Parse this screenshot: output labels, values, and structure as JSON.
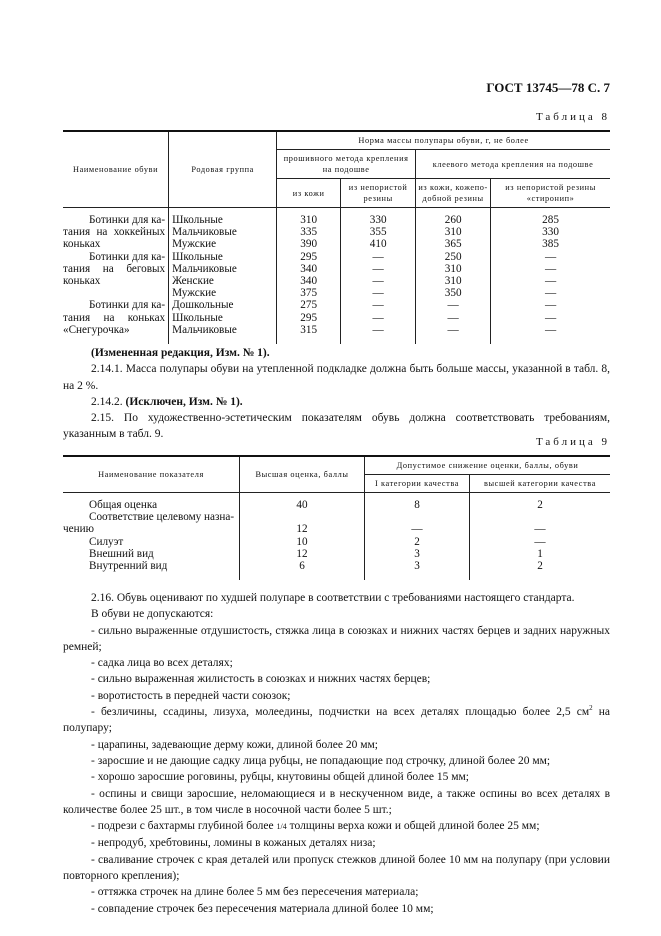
{
  "header": {
    "doc_ref": "ГОСТ 13745—78 С. 7"
  },
  "table8": {
    "caption": "Таблица 8",
    "headers": {
      "name": "Наименование обуви",
      "group": "Родовая группа",
      "norm": "Норма массы полупары обуви, г, не более",
      "sewn": "прошивного метода крепления на подошве",
      "glued": "клеевого метода крепления на подошве",
      "sewn_leather": "из кожи",
      "sewn_rubber": "из непористой резины",
      "glued_leather": "из кожи, кожепо-добной резины",
      "glued_stiron": "из непористой резины «стиронип»"
    },
    "rows": [
      {
        "name": "Ботинки для ка-",
        "group": "Школьные",
        "c1": "310",
        "c2": "330",
        "c3": "260",
        "c4": "285"
      },
      {
        "name": "тания на хоккейных",
        "group": "Мальчиковые",
        "c1": "335",
        "c2": "355",
        "c3": "310",
        "c4": "330"
      },
      {
        "name": "коньках",
        "group": "Мужские",
        "c1": "390",
        "c2": "410",
        "c3": "365",
        "c4": "385"
      },
      {
        "name": "Ботинки для ка-",
        "group": "Школьные",
        "c1": "295",
        "c2": "—",
        "c3": "250",
        "c4": "—"
      },
      {
        "name": "тания на беговых",
        "group": "Мальчиковые",
        "c1": "340",
        "c2": "—",
        "c3": "310",
        "c4": "—"
      },
      {
        "name": "коньках",
        "group": "Женские",
        "c1": "340",
        "c2": "—",
        "c3": "310",
        "c4": "—"
      },
      {
        "name": "",
        "group": "Мужские",
        "c1": "375",
        "c2": "—",
        "c3": "350",
        "c4": "—"
      },
      {
        "name": "Ботинки для ка-",
        "group": "Дошкольные",
        "c1": "275",
        "c2": "—",
        "c3": "—",
        "c4": "—"
      },
      {
        "name": "тания на коньках",
        "group": "Школьные",
        "c1": "295",
        "c2": "—",
        "c3": "—",
        "c4": "—"
      },
      {
        "name": "«Снегурочка»",
        "group": "Мальчиковые",
        "c1": "315",
        "c2": "—",
        "c3": "—",
        "c4": "—"
      }
    ]
  },
  "section1": {
    "p0": "(Измененная редакция, Изм. № 1).",
    "p1": "2.14.1. Масса полупары обуви на утепленной подкладке должна быть больше массы, указанной в табл. 8, на 2 %.",
    "p2_num": "2.14.2.",
    "p2_bold": "(Исключен, Изм. № 1).",
    "p3": "2.15. По художественно-эстетическим показателям обувь должна соответствовать требованиям, указанным в табл. 9."
  },
  "table9": {
    "caption": "Таблица 9",
    "headers": {
      "name": "Наименование показателя",
      "max": "Высшая оценка, баллы",
      "allowed": "Допустимое снижение оценки, баллы, обуви",
      "cat1": "I категории качества",
      "top": "высшей категории качества"
    },
    "rows": [
      {
        "name": "Общая оценка",
        "max": "40",
        "cat1": "8",
        "top": "2"
      },
      {
        "name": "Соответствие целевому назна-",
        "max": "",
        "cat1": "",
        "top": ""
      },
      {
        "name": "чению",
        "max": "12",
        "cat1": "—",
        "top": "—"
      },
      {
        "name": "Силуэт",
        "max": "10",
        "cat1": "2",
        "top": "—"
      },
      {
        "name": "Внешний вид",
        "max": "12",
        "cat1": "3",
        "top": "1"
      },
      {
        "name": "Внутренний вид",
        "max": "6",
        "cat1": "3",
        "top": "2"
      }
    ]
  },
  "section2": {
    "p1": "2.16. Обувь оценивают по худшей полупаре в соответствии с требованиями настоящего стандарта.",
    "p2": "В обуви не допускаются:",
    "items": [
      "- сильно выраженные отдушистость, стяжка лица в союзках и нижних частях берцев и задних наружных ремней;",
      "- садка лица во всех деталях;",
      "- сильно выраженная жилистость в союзках и нижних частях берцев;",
      "- воротистость в передней части союзок;",
      "- царапины, задевающие дерму кожи, длиной более 20 мм;",
      "- заросшие и не дающие садку лица рубцы, не попадающие под строчку, длиной более 20 мм;",
      "- хорошо заросшие роговины, рубцы, кнутовины общей длиной более 15 мм;",
      "- оспины и свищи заросшие, неломающиеся и в нескученном виде, а также оспины во всех деталях в количестве более 25 шт., в том числе в носочной части более 5 шт.;",
      "- непродуб, хребтовины, ломины в кожаных деталях низа;",
      "- сваливание строчек с края деталей или пропуск стежков длиной более 10 мм на полупару (при условии повторного крепления);",
      "- оттяжка строчек на длине более 5 мм без пересечения материала;",
      "- совпадение строчек без пересечения материала длиной более 10 мм;"
    ],
    "item_area_a": "- безличины, ссадины, лизуха, молеедины, подчистки на всех деталях площадью более 2,5 см",
    "item_area_sup": "2",
    "item_area_b": " на полупару;",
    "item_cut_a": "- подрези с бахтармы глубиной более ",
    "item_cut_frac": "1/4",
    "item_cut_b": " толщины верха кожи и общей длиной более 25 мм;"
  }
}
